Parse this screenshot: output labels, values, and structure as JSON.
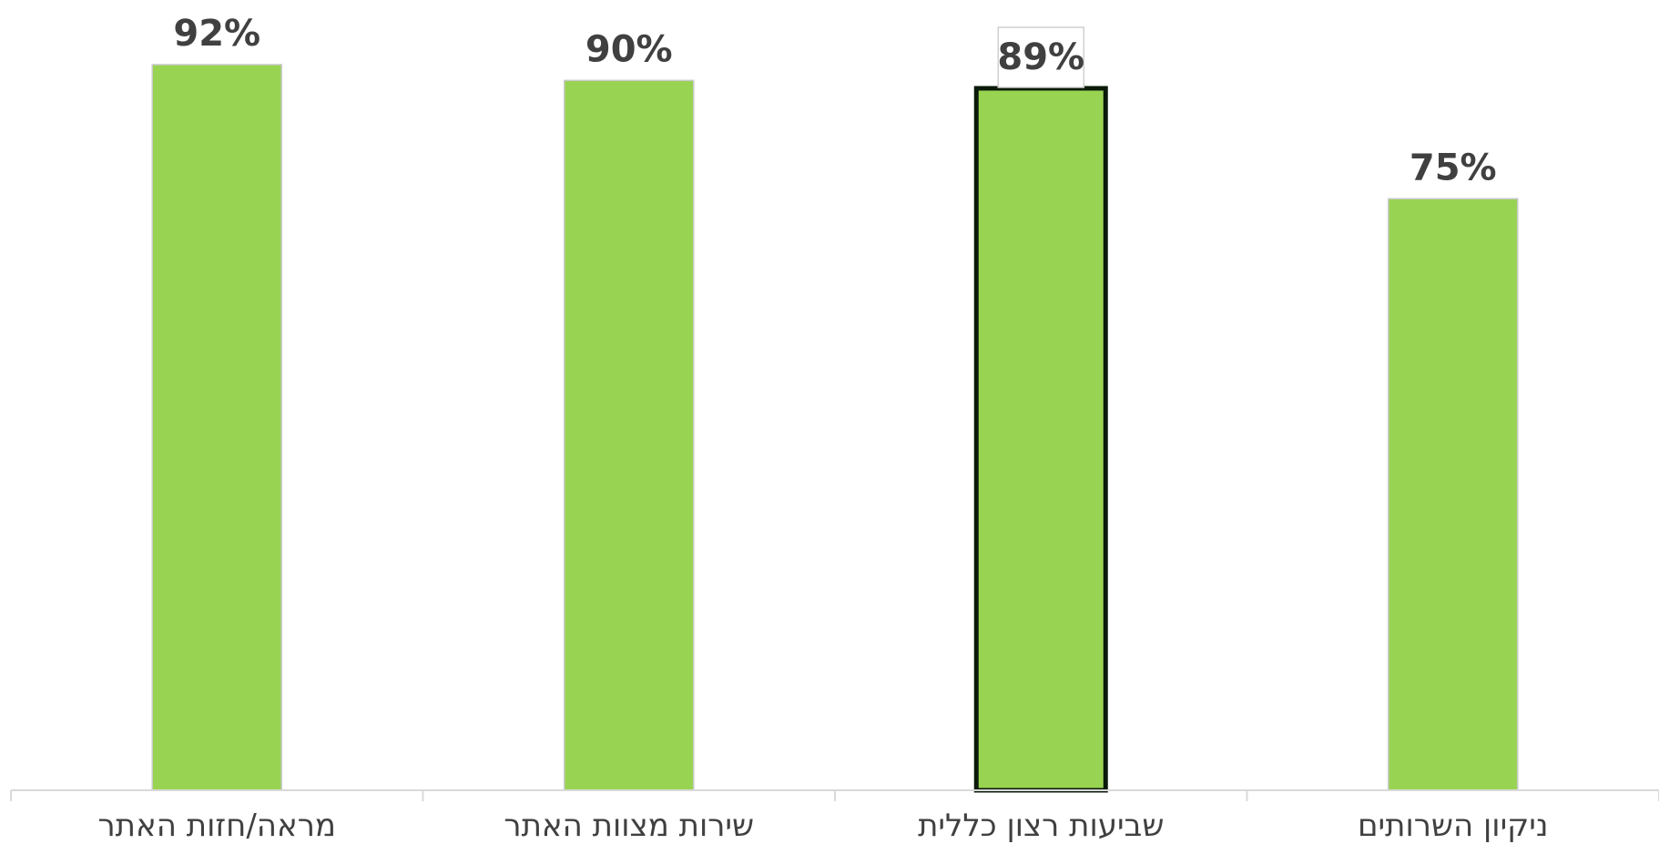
{
  "chart_data": {
    "type": "bar",
    "categories": [
      "מראה/חזות האתר",
      "שירות מצוות האתר",
      "שביעות רצון כללית",
      "ניקיון השרותים"
    ],
    "values": [
      92,
      90,
      89,
      75
    ],
    "value_labels": [
      "92%",
      "90%",
      "89%",
      "75%"
    ],
    "unit": "%",
    "title": "",
    "xlabel": "",
    "ylabel": "",
    "ylim": [
      0,
      92
    ],
    "grid": false,
    "legend": "none",
    "highlighted_category": "שביעות רצון כללית",
    "colors": {
      "bar": "#99D352",
      "bar_edge": "#C9C9C9",
      "highlight_edge": "#0B1A0B",
      "label_box_edge": "#D0D0D0",
      "axis": "#D9D9D9",
      "text": "#404040"
    }
  }
}
